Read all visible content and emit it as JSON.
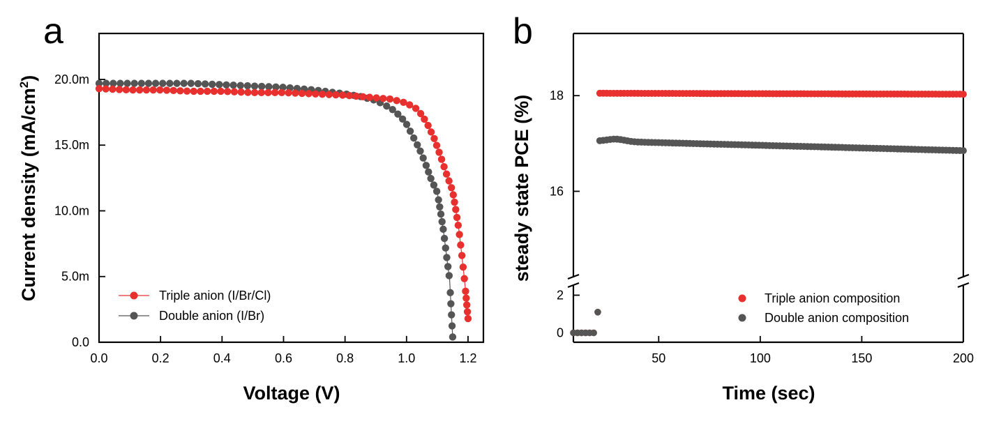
{
  "colors": {
    "triple": "#e8302e",
    "double": "#555555",
    "axis": "#000000"
  },
  "chart_data": [
    {
      "panel": "a",
      "type": "line",
      "xlabel": "Voltage (V)",
      "ylabel_main": "Current density (mA/cm",
      "ylabel_sup": "2",
      "ylabel_end": ")",
      "xlim": [
        0,
        1.25
      ],
      "ylim": [
        0,
        0.0235
      ],
      "xticks": [
        0.0,
        0.2,
        0.4,
        0.6,
        0.8,
        1.0,
        1.2
      ],
      "xtick_labels": [
        "0.0",
        "0.2",
        "0.4",
        "0.6",
        "0.8",
        "1.0",
        "1.2"
      ],
      "yticks": [
        0,
        0.005,
        0.01,
        0.015,
        0.02
      ],
      "ytick_labels": [
        "0.0",
        "5.0m",
        "10.0m",
        "15.0m",
        "20.0m"
      ],
      "legend_position": "bottom-left",
      "series": [
        {
          "name": "Triple anion (I/Br/Cl)",
          "key": "triple",
          "x": [
            0.0,
            0.1,
            0.2,
            0.3,
            0.4,
            0.5,
            0.6,
            0.7,
            0.8,
            0.9,
            0.95,
            1.0,
            1.03,
            1.05,
            1.07,
            1.09,
            1.11,
            1.13,
            1.15,
            1.16,
            1.17,
            1.18,
            1.19,
            1.2
          ],
          "y": [
            0.0193,
            0.0192,
            0.0192,
            0.0191,
            0.0191,
            0.019,
            0.019,
            0.0189,
            0.0188,
            0.0186,
            0.0185,
            0.0182,
            0.0178,
            0.0173,
            0.0165,
            0.0155,
            0.0142,
            0.0128,
            0.0115,
            0.0101,
            0.0086,
            0.0066,
            0.0044,
            0.0018
          ]
        },
        {
          "name": "Double anion (I/Br)",
          "key": "double",
          "x": [
            0.0,
            0.1,
            0.2,
            0.3,
            0.4,
            0.5,
            0.6,
            0.7,
            0.8,
            0.85,
            0.9,
            0.95,
            0.98,
            1.0,
            1.02,
            1.04,
            1.06,
            1.08,
            1.1,
            1.11,
            1.12,
            1.13,
            1.14,
            1.15
          ],
          "y": [
            0.0197,
            0.0197,
            0.0197,
            0.0197,
            0.0196,
            0.0195,
            0.0194,
            0.0192,
            0.0189,
            0.0187,
            0.0184,
            0.0178,
            0.0172,
            0.0166,
            0.0157,
            0.0148,
            0.0137,
            0.0124,
            0.0114,
            0.01,
            0.0085,
            0.0066,
            0.0048,
            0.0004
          ]
        }
      ]
    },
    {
      "panel": "b",
      "type": "scatter",
      "xlabel": "Time (sec)",
      "ylabel": "steady state PCE (%)",
      "xlim": [
        8,
        200
      ],
      "xticks": [
        50,
        100,
        150,
        200
      ],
      "xtick_labels": [
        "50",
        "100",
        "150",
        "200"
      ],
      "ylim_upper": [
        14.2,
        19.3
      ],
      "yticks_upper": [
        16,
        18
      ],
      "ytick_labels_upper": [
        "16",
        "18"
      ],
      "ylim_lower": [
        -0.5,
        2.5
      ],
      "yticks_lower": [
        0,
        2
      ],
      "ytick_labels_lower": [
        "0",
        "2"
      ],
      "axis_break": "y",
      "legend_position": "bottom-right",
      "series": [
        {
          "name": "Triple anion composition",
          "key": "triple",
          "pre_x": [
            8,
            10,
            12,
            14,
            16,
            18,
            20
          ],
          "pre_y": [
            0,
            0,
            0,
            0,
            0,
            0,
            1.1
          ],
          "t_start": 21,
          "t_end": 200,
          "y_start": 18.05,
          "y_end": 18.03
        },
        {
          "name": "Double anion composition",
          "key": "double",
          "pre_x": [
            8,
            10,
            12,
            14,
            16,
            18,
            20
          ],
          "pre_y": [
            0,
            0,
            0,
            0,
            0,
            0,
            1.1
          ],
          "t_start": 21,
          "t_end": 200,
          "y_start": 17.05,
          "y_end": 16.85
        }
      ]
    }
  ]
}
